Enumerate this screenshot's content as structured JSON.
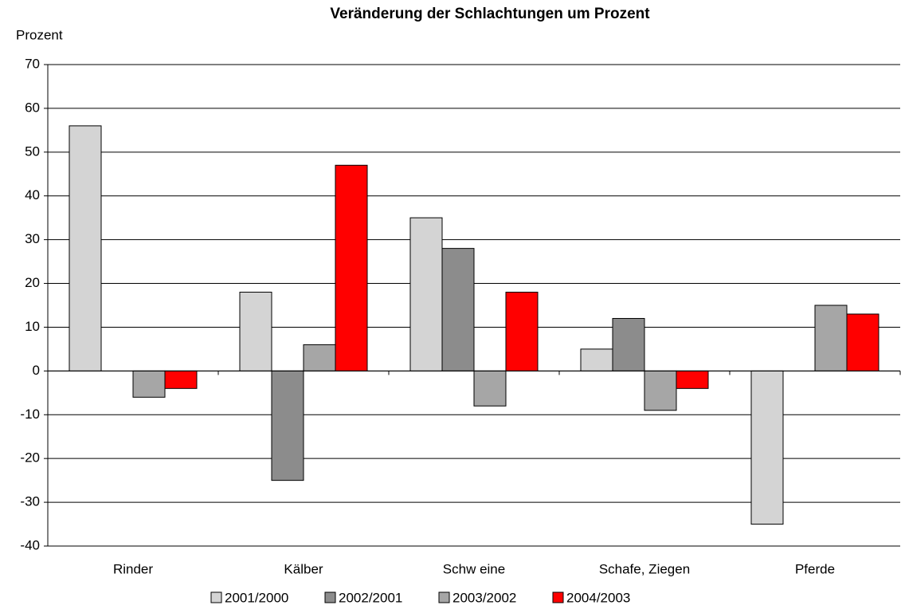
{
  "chart_data": {
    "type": "bar",
    "title": "Veränderung der Schlachtungen um Prozent",
    "y_label": "Prozent",
    "categories": [
      "Rinder",
      "Kälber",
      "Schw eine",
      "Schafe, Ziegen",
      "Pferde"
    ],
    "series": [
      {
        "name": "2001/2000",
        "color": "#d4d4d4",
        "values": [
          56,
          18,
          35,
          5,
          -35
        ]
      },
      {
        "name": "2002/2001",
        "color": "#8c8c8c",
        "values": [
          null,
          -25,
          28,
          12,
          null
        ]
      },
      {
        "name": "2003/2002",
        "color": "#a6a6a6",
        "values": [
          -6,
          6,
          -8,
          -9,
          15
        ]
      },
      {
        "name": "2004/2003",
        "color": "#ff0000",
        "values": [
          -4,
          47,
          18,
          -4,
          13
        ]
      }
    ],
    "ylim": [
      -40,
      70
    ],
    "yticks": [
      -40,
      -30,
      -20,
      -10,
      0,
      10,
      20,
      30,
      40,
      50,
      60,
      70
    ],
    "grid": true,
    "legend": "bottom"
  }
}
